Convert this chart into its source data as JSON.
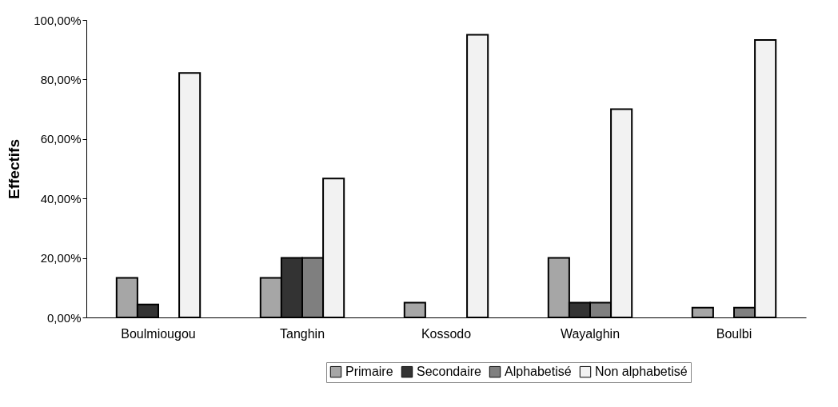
{
  "chart_data": {
    "type": "bar",
    "ylabel": "Effectifs",
    "categories": [
      "Boulmiougou",
      "Tanghin",
      "Kossodo",
      "Wayalghin",
      "Boulbi"
    ],
    "series": [
      {
        "name": "Primaire",
        "color": "#a6a6a6",
        "values": [
          13.3,
          13.3,
          5,
          20,
          3.3
        ]
      },
      {
        "name": "Secondaire",
        "color": "#333333",
        "values": [
          4.4,
          20,
          null,
          5,
          null
        ]
      },
      {
        "name": "Alphabetisé",
        "color": "#7f7f7f",
        "values": [
          null,
          20,
          null,
          5,
          3.3
        ]
      },
      {
        "name": "Non alphabetisé",
        "color": "#f2f2f2",
        "values": [
          82.2,
          46.7,
          95,
          70,
          93.3
        ]
      }
    ],
    "ylim": [
      0,
      100
    ],
    "yticks": [
      {
        "value": 0,
        "label": "0,00%"
      },
      {
        "value": 20,
        "label": "20,00%"
      },
      {
        "value": 40,
        "label": "40,00%"
      },
      {
        "value": 60,
        "label": "60,00%"
      },
      {
        "value": 80,
        "label": "80,00%"
      },
      {
        "value": 100,
        "label": "100,00%"
      }
    ],
    "grid": false,
    "legend": "bottom"
  }
}
